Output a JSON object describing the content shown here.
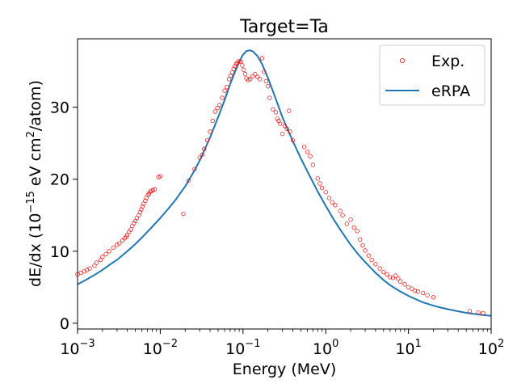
{
  "chart_data": {
    "type": "scatter",
    "title": "Target=Ta",
    "xlabel": "Energy (MeV)",
    "ylabel_main": "dE/dx (10",
    "ylabel_exp": "−15",
    "ylabel_mid": " eV cm",
    "ylabel_exp2": "2",
    "ylabel_end": "/atom)",
    "xscale": "log",
    "xlim": [
      0.001,
      100
    ],
    "ylim": [
      -0.8,
      39.5
    ],
    "x_ticks": [
      {
        "value": 0.001,
        "base": "10",
        "exp": "−3"
      },
      {
        "value": 0.01,
        "base": "10",
        "exp": "−2"
      },
      {
        "value": 0.1,
        "base": "10",
        "exp": "−1"
      },
      {
        "value": 1,
        "base": "10",
        "exp": "0"
      },
      {
        "value": 10,
        "base": "10",
        "exp": "1"
      },
      {
        "value": 100,
        "base": "10",
        "exp": "2"
      }
    ],
    "y_ticks": [
      0,
      10,
      20,
      30
    ],
    "legend_position": "top-right",
    "colors": {
      "exp": "#ff0000",
      "erpa": "#1f77b4"
    },
    "series": [
      {
        "name": "Exp.",
        "kind": "scatter",
        "x": [
          0.001,
          0.0011,
          0.0012,
          0.0013,
          0.0014,
          0.0016,
          0.0017,
          0.0019,
          0.002,
          0.0022,
          0.0024,
          0.0027,
          0.003,
          0.0032,
          0.0035,
          0.0037,
          0.0039,
          0.004,
          0.0042,
          0.0044,
          0.0046,
          0.0048,
          0.005,
          0.0052,
          0.0055,
          0.0057,
          0.0059,
          0.0061,
          0.0063,
          0.0066,
          0.0068,
          0.0071,
          0.0073,
          0.0076,
          0.0079,
          0.0082,
          0.0086,
          0.0095,
          0.01,
          0.019,
          0.022,
          0.026,
          0.03,
          0.032,
          0.034,
          0.037,
          0.04,
          0.043,
          0.046,
          0.049,
          0.052,
          0.056,
          0.06,
          0.064,
          0.068,
          0.071,
          0.074,
          0.077,
          0.08,
          0.083,
          0.086,
          0.09,
          0.094,
          0.098,
          0.102,
          0.106,
          0.11,
          0.116,
          0.122,
          0.13,
          0.14,
          0.15,
          0.16,
          0.17,
          0.18,
          0.19,
          0.2,
          0.21,
          0.23,
          0.25,
          0.26,
          0.27,
          0.28,
          0.3,
          0.32,
          0.34,
          0.36,
          0.37,
          0.4,
          0.55,
          0.6,
          0.65,
          0.7,
          0.8,
          0.85,
          0.9,
          1.0,
          1.1,
          1.2,
          1.3,
          1.5,
          1.6,
          1.8,
          2.0,
          2.2,
          2.4,
          2.6,
          2.8,
          3.0,
          3.3,
          3.6,
          4.0,
          4.5,
          5.0,
          5.5,
          6.0,
          6.5,
          7.0,
          7.5,
          8.0,
          9.0,
          10,
          11,
          12,
          13,
          15,
          17,
          20,
          55,
          70,
          80
        ],
        "y": [
          6.8,
          7.0,
          7.2,
          7.4,
          7.6,
          8.0,
          8.4,
          8.8,
          9.2,
          9.6,
          10.0,
          10.5,
          10.9,
          11.1,
          11.5,
          11.8,
          12.0,
          12.3,
          12.7,
          13.0,
          13.5,
          13.9,
          14.2,
          14.6,
          15.0,
          15.4,
          15.8,
          16.2,
          16.6,
          17.0,
          17.4,
          17.8,
          18.0,
          18.3,
          18.4,
          18.5,
          18.6,
          20.3,
          20.4,
          15.2,
          19.8,
          21.4,
          23.0,
          23.4,
          24.2,
          25.4,
          26.6,
          28.1,
          29.4,
          29.9,
          30.3,
          31.3,
          32.3,
          32.8,
          33.9,
          34.4,
          34.8,
          35.3,
          35.7,
          36.0,
          36.2,
          36.4,
          36.3,
          35.8,
          35.2,
          34.6,
          34.0,
          33.8,
          33.9,
          34.3,
          34.6,
          34.2,
          33.9,
          36.8,
          34.9,
          33.6,
          32.9,
          31.3,
          29.7,
          29.3,
          28.4,
          28.1,
          27.7,
          26.3,
          27.4,
          27.0,
          29.5,
          26.6,
          25.4,
          24.5,
          23.8,
          23.2,
          22.0,
          20.1,
          19.4,
          18.8,
          18.2,
          17.4,
          16.8,
          16.4,
          15.6,
          15.0,
          13.8,
          14.4,
          13.3,
          12.8,
          11.6,
          10.8,
          10.1,
          9.4,
          8.8,
          8.2,
          7.6,
          7.1,
          6.8,
          6.4,
          6.3,
          6.6,
          6.2,
          5.8,
          5.4,
          5.0,
          4.8,
          4.5,
          4.4,
          4.2,
          3.9,
          3.6,
          1.7,
          1.5,
          1.4
        ]
      },
      {
        "name": "eRPA",
        "kind": "line",
        "x": [
          0.001,
          0.0013,
          0.0016,
          0.002,
          0.0025,
          0.003,
          0.004,
          0.005,
          0.006,
          0.007,
          0.008,
          0.01,
          0.0125,
          0.015,
          0.02,
          0.025,
          0.03,
          0.04,
          0.05,
          0.06,
          0.07,
          0.08,
          0.09,
          0.1,
          0.11,
          0.12,
          0.13,
          0.15,
          0.17,
          0.2,
          0.25,
          0.3,
          0.35,
          0.4,
          0.5,
          0.6,
          0.7,
          0.8,
          1.0,
          1.25,
          1.5,
          2.0,
          2.5,
          3.0,
          4.0,
          5.0,
          6.0,
          7.0,
          8.0,
          10,
          12.5,
          15,
          20,
          25,
          30,
          40,
          50,
          60,
          70,
          80,
          100
        ],
        "y": [
          5.4,
          6.1,
          6.7,
          7.4,
          8.2,
          8.8,
          10.0,
          11.0,
          11.9,
          12.7,
          13.4,
          14.6,
          15.9,
          17.0,
          19.0,
          20.9,
          22.6,
          25.8,
          28.6,
          31.0,
          33.2,
          34.9,
          36.3,
          37.3,
          37.8,
          37.9,
          37.8,
          37.1,
          36.0,
          34.1,
          31.1,
          28.6,
          26.8,
          25.3,
          22.9,
          21.1,
          19.6,
          18.3,
          16.3,
          14.4,
          13.0,
          10.9,
          9.5,
          8.5,
          7.0,
          6.0,
          5.3,
          4.8,
          4.4,
          3.8,
          3.3,
          2.9,
          2.45,
          2.15,
          1.95,
          1.65,
          1.45,
          1.32,
          1.22,
          1.14,
          1.02
        ]
      }
    ]
  }
}
